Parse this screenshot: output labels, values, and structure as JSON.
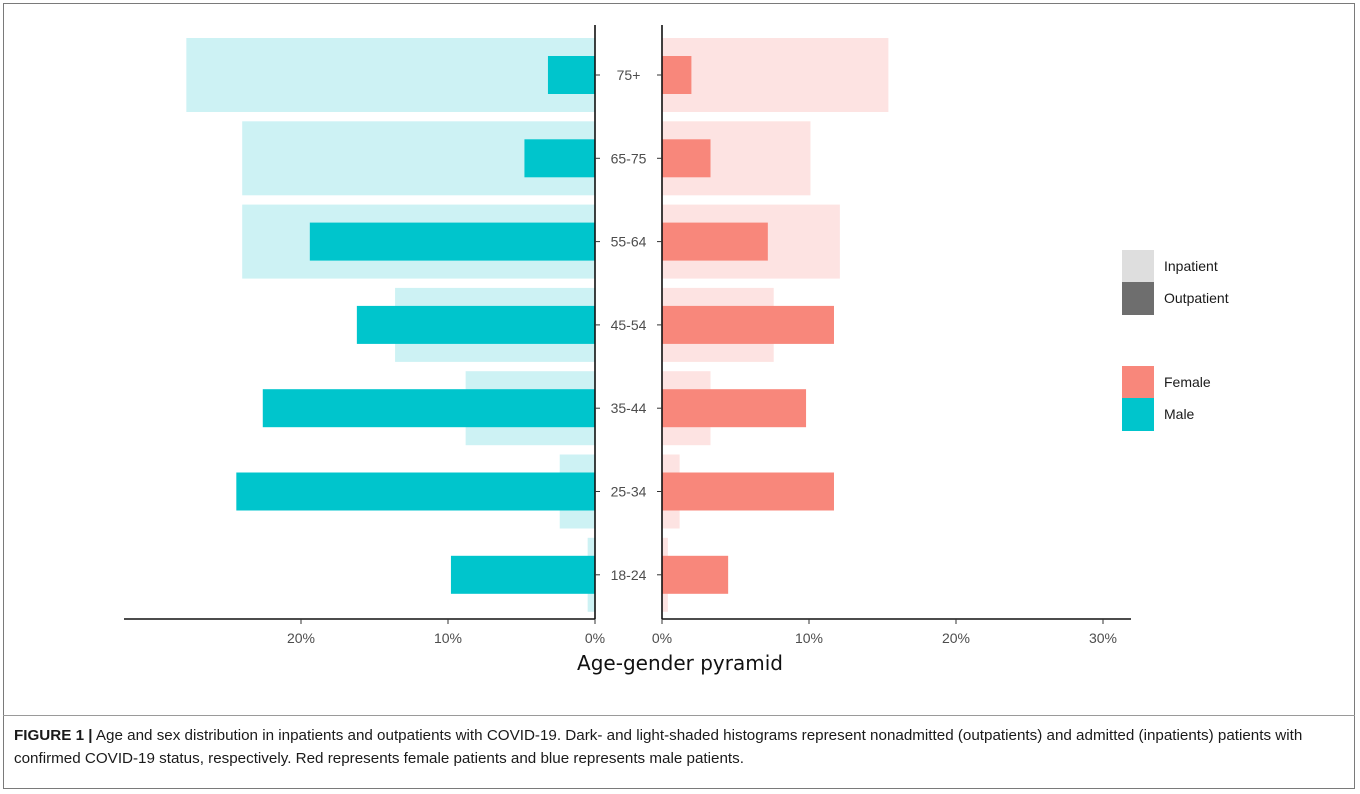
{
  "chart_data": {
    "type": "bar",
    "subtype": "population-pyramid",
    "title": "Age-gender pyramid",
    "categories": [
      "18-24",
      "25-34",
      "35-44",
      "45-54",
      "55-64",
      "65-75",
      "75+"
    ],
    "left_axis": {
      "ticks": [
        0,
        10,
        20
      ],
      "tick_labels": [
        "0%",
        "10%",
        "20%"
      ],
      "range": [
        0,
        32
      ]
    },
    "right_axis": {
      "ticks": [
        0,
        10,
        20,
        30
      ],
      "tick_labels": [
        "0%",
        "10%",
        "20%",
        "30%"
      ],
      "range": [
        0,
        32
      ]
    },
    "series": [
      {
        "name": "Inpatient",
        "sex": "Male",
        "values": [
          0.5,
          2.4,
          8.8,
          13.6,
          24.0,
          24.0,
          27.8
        ]
      },
      {
        "name": "Outpatient",
        "sex": "Male",
        "values": [
          9.8,
          24.4,
          22.6,
          16.2,
          19.4,
          4.8,
          3.2
        ]
      },
      {
        "name": "Inpatient",
        "sex": "Female",
        "values": [
          0.4,
          1.2,
          3.3,
          7.6,
          12.1,
          10.1,
          15.4
        ]
      },
      {
        "name": "Outpatient",
        "sex": "Female",
        "values": [
          4.5,
          11.7,
          9.8,
          11.7,
          7.2,
          3.3,
          2.0
        ]
      }
    ],
    "legend": {
      "placement": "right",
      "status": [
        {
          "label": "Inpatient",
          "color": "#dedede"
        },
        {
          "label": "Outpatient",
          "color": "#6e6e6e"
        }
      ],
      "sex": [
        {
          "label": "Female",
          "color": "#f8877b"
        },
        {
          "label": "Male",
          "color": "#00c5cc"
        }
      ]
    },
    "colors": {
      "male_outpatient": "#00c5cc",
      "male_inpatient": "#cdf2f4",
      "female_outpatient": "#f8877b",
      "female_inpatient": "#fde3e2"
    }
  },
  "caption": {
    "label": "FIGURE 1 |",
    "text": "Age and sex distribution in inpatients and outpatients with COVID-19. Dark- and light-shaded histograms represent nonadmitted (outpatients) and admitted (inpatients) patients with confirmed COVID-19 status, respectively. Red represents female patients and blue represents male patients."
  }
}
